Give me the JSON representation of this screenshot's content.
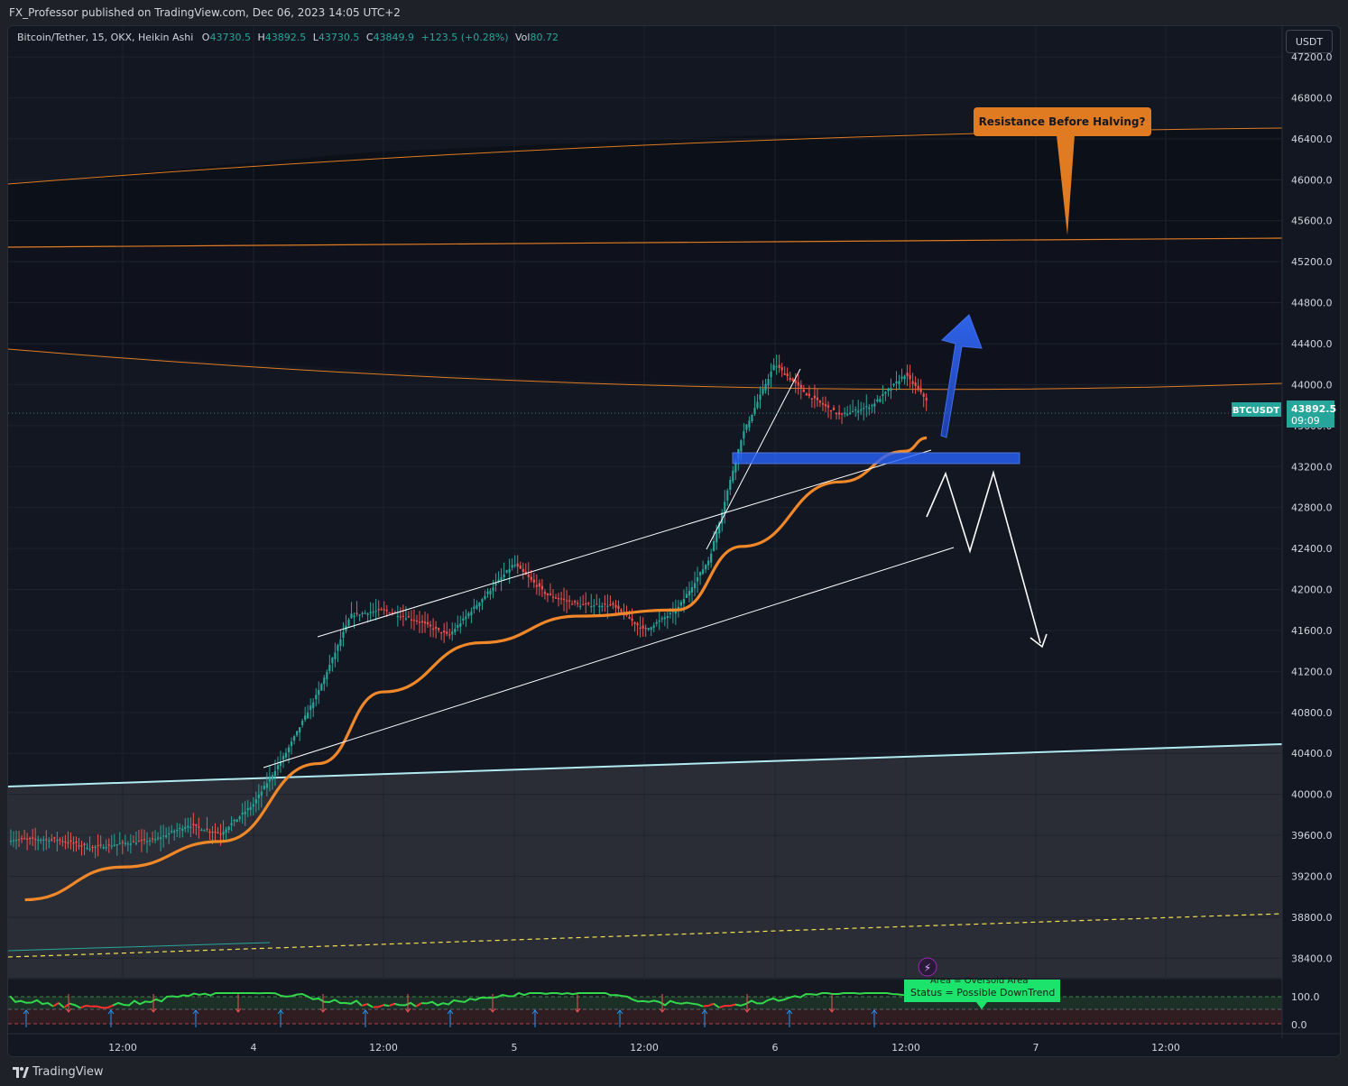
{
  "header": {
    "publisher_text": "FX_Professor published on TradingView.com, Dec 06, 2023 14:05 UTC+2"
  },
  "legend": {
    "symbol": "Bitcoin/Tether, 15, OKX, Heikin Ashi",
    "o_label": "O",
    "o_value": "43730.5",
    "h_label": "H",
    "h_value": "43892.5",
    "l_label": "L",
    "l_value": "43730.5",
    "c_label": "C",
    "c_value": "43849.9",
    "change": "+123.5 (+0.28%)",
    "vol_label": "Vol",
    "vol_value": "80.72"
  },
  "currency_button": "USDT",
  "price_tag": {
    "symbol": "BTCUSDT",
    "price": "43892.5",
    "countdown": "09:09"
  },
  "annotation": {
    "callout": "Resistance Before Halving?"
  },
  "indicator": {
    "area_text": "Area =  Oversold Area",
    "status_text": "Status =  Possible DownTrend",
    "levels": [
      "100.0",
      "0.0"
    ]
  },
  "footer": {
    "brand": "TradingView"
  },
  "colors": {
    "bull": "#26a69a",
    "bear": "#ef5350",
    "ma": "#f0882a",
    "fib": "#e07b22",
    "support": "#b2ebf2",
    "zone": "#2962ff",
    "background": "#131722"
  },
  "chart_data": {
    "type": "candlestick",
    "symbol": "BTCUSDT",
    "interval": "15",
    "exchange": "OKX",
    "style": "Heikin Ashi",
    "ylim": [
      38200,
      47500
    ],
    "y_ticks": [
      "47200.0",
      "46800.0",
      "46400.0",
      "46000.0",
      "45600.0",
      "45200.0",
      "44800.0",
      "44400.0",
      "44000.0",
      "43600.0",
      "43200.0",
      "42800.0",
      "42400.0",
      "42000.0",
      "41600.0",
      "41200.0",
      "40800.0",
      "40400.0",
      "40000.0",
      "39600.0",
      "39200.0",
      "38800.0",
      "38400.0"
    ],
    "x_ticks": [
      "12:00",
      "4",
      "12:00",
      "5",
      "12:00",
      "6",
      "12:00",
      "7",
      "12:00"
    ],
    "grid": true,
    "close_path": [
      [
        "Dec 3 06:00",
        39560
      ],
      [
        "Dec 3 09:00",
        39480
      ],
      [
        "Dec 3 12:00",
        39520
      ],
      [
        "Dec 3 15:00",
        39560
      ],
      [
        "Dec 3 18:00",
        39700
      ],
      [
        "Dec 3 21:00",
        39620
      ],
      [
        "Dec 4 00:00",
        39900
      ],
      [
        "Dec 4 03:00",
        40400
      ],
      [
        "Dec 4 06:00",
        41000
      ],
      [
        "Dec 4 09:00",
        41750
      ],
      [
        "Dec 4 12:00",
        41800
      ],
      [
        "Dec 4 15:00",
        41700
      ],
      [
        "Dec 4 18:00",
        41550
      ],
      [
        "Dec 4 21:00",
        41900
      ],
      [
        "Dec 5 00:00",
        42250
      ],
      [
        "Dec 5 03:00",
        41950
      ],
      [
        "Dec 5 06:00",
        41850
      ],
      [
        "Dec 5 09:00",
        41850
      ],
      [
        "Dec 5 12:00",
        41600
      ],
      [
        "Dec 5 15:00",
        41800
      ],
      [
        "Dec 5 18:00",
        42300
      ],
      [
        "Dec 5 21:00",
        43500
      ],
      [
        "Dec 6 00:00",
        44200
      ],
      [
        "Dec 6 03:00",
        43900
      ],
      [
        "Dec 6 06:00",
        43700
      ],
      [
        "Dec 6 09:00",
        43800
      ],
      [
        "Dec 6 12:00",
        44100
      ],
      [
        "Dec 6 14:00",
        43850
      ]
    ],
    "moving_average": [
      [
        "Dec 3 03:00",
        38970
      ],
      [
        "Dec 3 12:00",
        39290
      ],
      [
        "Dec 3 21:00",
        39540
      ],
      [
        "Dec 4 06:00",
        40300
      ],
      [
        "Dec 4 12:00",
        41000
      ],
      [
        "Dec 4 21:00",
        41480
      ],
      [
        "Dec 5 06:00",
        41740
      ],
      [
        "Dec 5 15:00",
        41800
      ],
      [
        "Dec 5 21:00",
        42420
      ],
      [
        "Dec 6 06:00",
        43050
      ],
      [
        "Dec 6 12:00",
        43350
      ],
      [
        "Dec 6 14:00",
        43480
      ]
    ],
    "current_price": 43892.5,
    "annotations": [
      {
        "text": "Resistance Before Halving?",
        "level": 45600
      },
      {
        "type": "zone",
        "from": 43320,
        "to": 43420
      }
    ],
    "oscillator": {
      "levels": [
        100.0,
        0.0
      ],
      "area": "Oversold Area",
      "status": "Possible DownTrend"
    }
  }
}
